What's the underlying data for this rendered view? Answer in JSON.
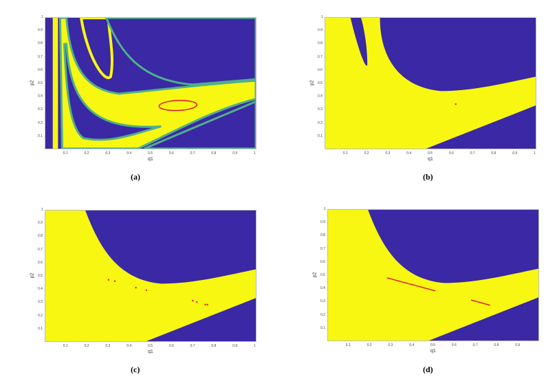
{
  "colors": {
    "blue": "#3a28a4",
    "yellow": "#f7f712",
    "edge": "#4fb08a",
    "red": "#e8141e"
  },
  "chart_data": [
    {
      "type": "heatmap",
      "panel_label": "(a)",
      "xlabel": "q1",
      "ylabel": "p2",
      "xlim": [
        0,
        1
      ],
      "ylim": [
        0,
        1
      ],
      "xticks": [
        "0.1",
        "0.2",
        "0.3",
        "0.4",
        "0.5",
        "0.6",
        "0.7",
        "0.8",
        "0.9",
        "1"
      ],
      "yticks": [
        "0.1",
        "0.2",
        "0.3",
        "0.4",
        "0.5",
        "0.6",
        "0.7",
        "0.8",
        "0.9",
        "1"
      ],
      "annotation": {
        "kind": "closed-curve",
        "center": [
          0.63,
          0.33
        ],
        "q1_range": [
          0.54,
          0.72
        ],
        "p2_range": [
          0.3,
          0.37
        ]
      }
    },
    {
      "type": "heatmap",
      "panel_label": "(b)",
      "xlabel": "q1",
      "ylabel": "p2",
      "xlim": [
        0,
        1
      ],
      "ylim": [
        0,
        1
      ],
      "xticks": [
        "0.1",
        "0.2",
        "0.3",
        "0.4",
        "0.5",
        "0.6",
        "0.7",
        "0.8",
        "0.9",
        "1"
      ],
      "yticks": [
        "0.1",
        "0.2",
        "0.3",
        "0.4",
        "0.5",
        "0.6",
        "0.7",
        "0.8",
        "0.9",
        "1"
      ],
      "annotation": {
        "kind": "points",
        "points": [
          [
            0.62,
            0.34
          ]
        ]
      }
    },
    {
      "type": "heatmap",
      "panel_label": "(c)",
      "xlabel": "q1",
      "ylabel": "p2",
      "xlim": [
        0,
        1
      ],
      "ylim": [
        0,
        1
      ],
      "xticks": [
        "0.1",
        "0.2",
        "0.3",
        "0.4",
        "0.5",
        "0.6",
        "0.7",
        "0.8",
        "0.9",
        "1"
      ],
      "yticks": [
        "0.1",
        "0.2",
        "0.3",
        "0.4",
        "0.5",
        "0.6",
        "0.7",
        "0.8",
        "0.9",
        "1"
      ],
      "annotation": {
        "kind": "points",
        "points": [
          [
            0.3,
            0.47
          ],
          [
            0.33,
            0.46
          ],
          [
            0.43,
            0.41
          ],
          [
            0.48,
            0.39
          ],
          [
            0.7,
            0.31
          ],
          [
            0.72,
            0.3
          ],
          [
            0.76,
            0.28
          ],
          [
            0.77,
            0.28
          ]
        ]
      }
    },
    {
      "type": "heatmap",
      "panel_label": "(d)",
      "xlabel": "q1",
      "ylabel": "p2",
      "xlim": [
        0,
        1
      ],
      "ylim": [
        0,
        1
      ],
      "xticks": [
        "0.1",
        "0.2",
        "0.3",
        "0.4",
        "0.5",
        "0.6",
        "0.7",
        "0.8",
        "0.9"
      ],
      "yticks": [
        "0.1",
        "0.2",
        "0.3",
        "0.4",
        "0.5",
        "0.6",
        "0.7",
        "0.8",
        "0.9",
        "1"
      ],
      "annotation": {
        "kind": "segments",
        "segments": [
          [
            [
              0.28,
              0.48
            ],
            [
              0.51,
              0.38
            ]
          ],
          [
            [
              0.68,
              0.31
            ],
            [
              0.77,
              0.27
            ]
          ]
        ]
      }
    }
  ]
}
